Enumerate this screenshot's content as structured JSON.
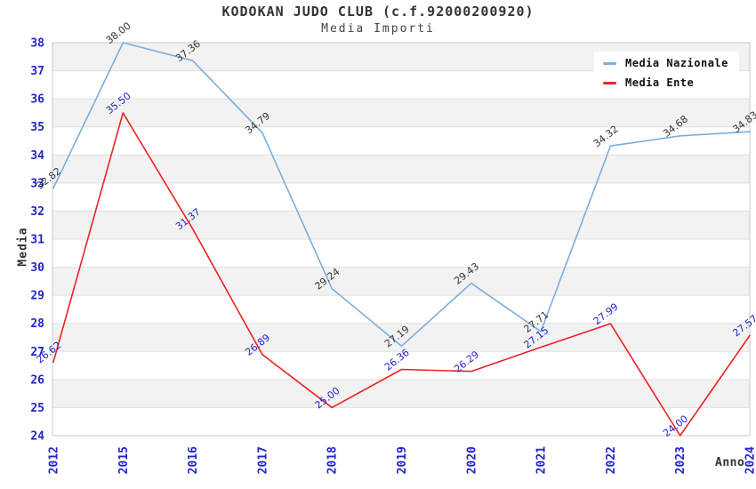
{
  "header": {
    "title": "KODOKAN JUDO CLUB (c.f.92000200920)",
    "subtitle": "Media Importi"
  },
  "chart_data": {
    "type": "line",
    "title": "KODOKAN JUDO CLUB (c.f.92000200920)",
    "subtitle": "Media Importi",
    "xlabel": "Anno",
    "ylabel": "Media",
    "categories": [
      "2012",
      "2015",
      "2016",
      "2017",
      "2018",
      "2019",
      "2020",
      "2021",
      "2022",
      "2023",
      "2024"
    ],
    "series": [
      {
        "name": "Media Nazionale",
        "color": "#7aaede",
        "label_color": "#333333",
        "values": [
          32.82,
          38.0,
          37.36,
          34.79,
          29.24,
          27.19,
          29.43,
          27.71,
          34.32,
          34.68,
          34.83
        ]
      },
      {
        "name": "Media Ente",
        "color": "#ee2222",
        "label_color": "#2222cc",
        "values": [
          26.62,
          35.5,
          31.37,
          26.89,
          25.0,
          26.36,
          26.29,
          27.15,
          27.99,
          24.0,
          27.57
        ]
      }
    ],
    "ylim": [
      24,
      38
    ],
    "ytick_step": 1,
    "grid": true,
    "band_fill": "#f2f2f2",
    "grid_color": "#e0e0e0",
    "border_color": "#c8c8c8",
    "tick_label_color": "#2222cc",
    "value_label_decimals": 2,
    "legend_position": "top-right"
  }
}
